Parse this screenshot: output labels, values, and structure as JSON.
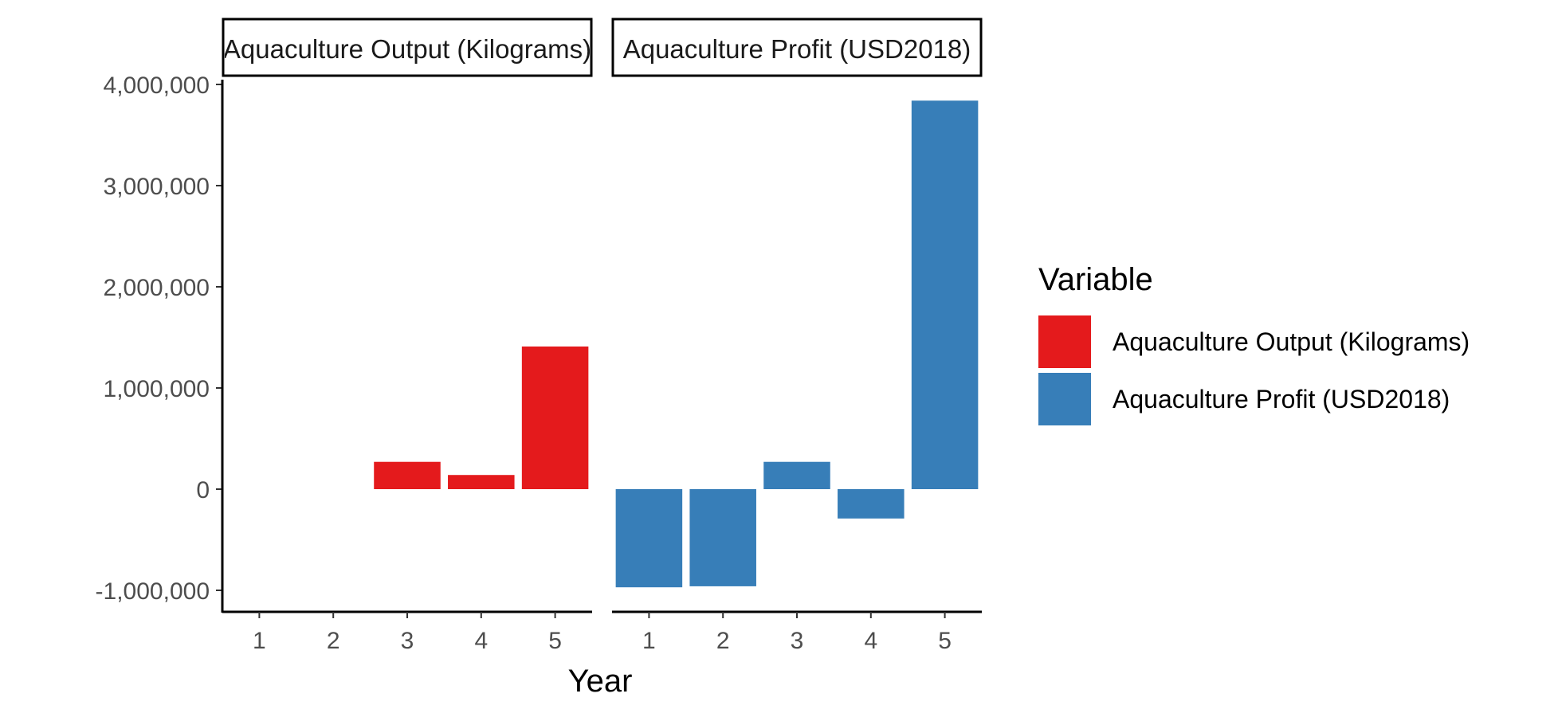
{
  "chart_data": {
    "type": "bar",
    "x_title": "Year",
    "y_ticks": [
      {
        "value": -1000000,
        "label": "-1,000,000"
      },
      {
        "value": 0,
        "label": "0"
      },
      {
        "value": 1000000,
        "label": "1,000,000"
      },
      {
        "value": 2000000,
        "label": "2,000,000"
      },
      {
        "value": 3000000,
        "label": "3,000,000"
      },
      {
        "value": 4000000,
        "label": "4,000,000"
      }
    ],
    "ylim": [
      -1200000,
      4200000
    ],
    "categories": [
      "1",
      "2",
      "3",
      "4",
      "5"
    ],
    "panels": [
      {
        "strip": "Aquaculture Output (Kilograms)",
        "color": "#E41A1C",
        "values": [
          0,
          0,
          270000,
          140000,
          1410000
        ]
      },
      {
        "strip": "Aquaculture Profit (USD2018)",
        "color": "#377EB8",
        "values": [
          -970000,
          -960000,
          270000,
          -290000,
          3840000
        ]
      }
    ],
    "legend": {
      "title": "Variable",
      "position": "right",
      "items": [
        {
          "label": "Aquaculture Output (Kilograms)",
          "color": "#E41A1C"
        },
        {
          "label": "Aquaculture Profit (USD2018)",
          "color": "#377EB8"
        }
      ]
    }
  }
}
